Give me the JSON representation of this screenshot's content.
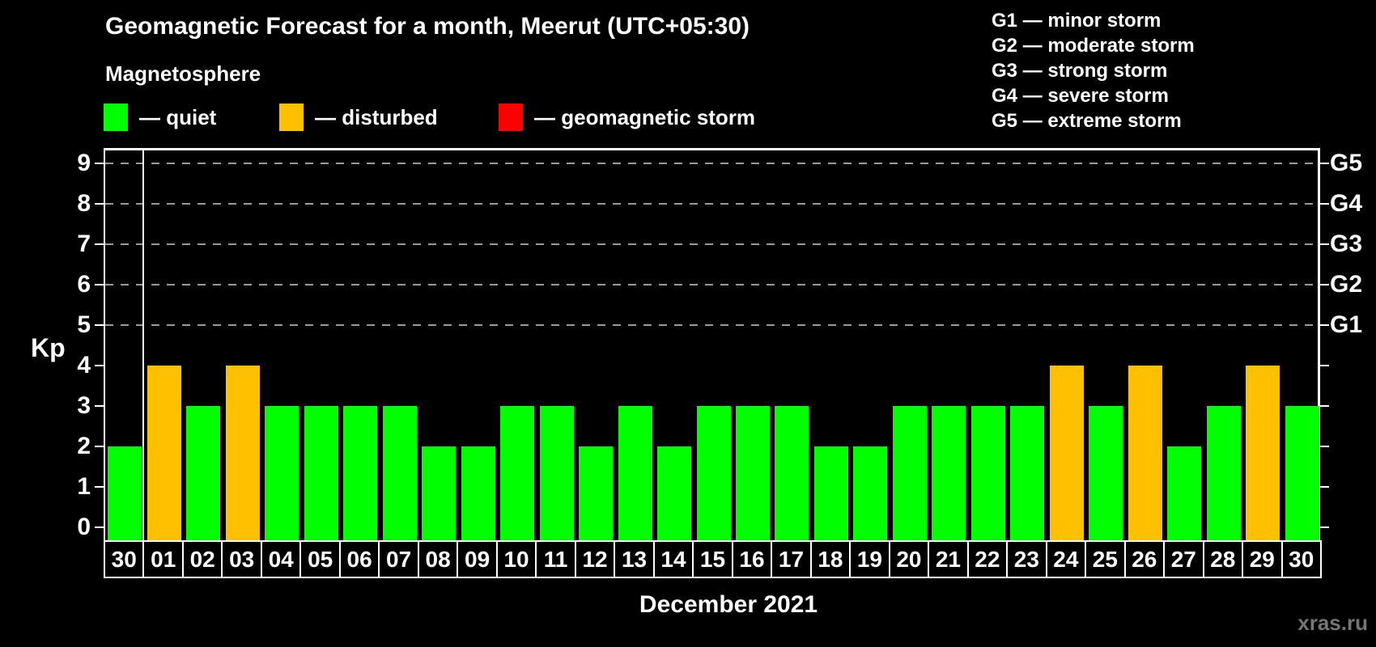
{
  "title": "Geomagnetic Forecast for a month, Meerut (UTC+05:30)",
  "subtitle": "Magnetosphere",
  "status_legend": {
    "items": [
      {
        "name": "quiet",
        "label": "— quiet",
        "color": "#00ff00"
      },
      {
        "name": "disturbed",
        "label": "— disturbed",
        "color": "#ffc000"
      },
      {
        "name": "storm",
        "label": "— geomagnetic storm",
        "color": "#ff0000"
      }
    ]
  },
  "storm_scale_legend": {
    "items": [
      {
        "code": "G1",
        "label": "G1 — minor storm"
      },
      {
        "code": "G2",
        "label": "G2 — moderate storm"
      },
      {
        "code": "G3",
        "label": "G3 — strong storm"
      },
      {
        "code": "G4",
        "label": "G4 — severe storm"
      },
      {
        "code": "G5",
        "label": "G5 — extreme storm"
      }
    ]
  },
  "watermark": "xras.ru",
  "chart_data": {
    "type": "bar",
    "title": "Geomagnetic Forecast for a month, Meerut (UTC+05:30)",
    "xlabel": "December 2021",
    "ylabel": "Kp",
    "ylim": [
      0,
      9.5
    ],
    "yticks": [
      0,
      1,
      2,
      3,
      4,
      5,
      6,
      7,
      8,
      9
    ],
    "grid": "dashed-horizontal",
    "gridlines_at_kp": [
      5,
      6,
      7,
      8,
      9
    ],
    "right_axis_labels": [
      {
        "kp": 5,
        "label": "G1"
      },
      {
        "kp": 6,
        "label": "G2"
      },
      {
        "kp": 7,
        "label": "G3"
      },
      {
        "kp": 8,
        "label": "G4"
      },
      {
        "kp": 9,
        "label": "G5"
      }
    ],
    "legend_position": "top-left",
    "month_separator_after_index": 0,
    "categories": [
      "30",
      "01",
      "02",
      "03",
      "04",
      "05",
      "06",
      "07",
      "08",
      "09",
      "10",
      "11",
      "12",
      "13",
      "14",
      "15",
      "16",
      "17",
      "18",
      "19",
      "20",
      "21",
      "22",
      "23",
      "24",
      "25",
      "26",
      "27",
      "28",
      "29",
      "30"
    ],
    "values": [
      2,
      4,
      3,
      4,
      3,
      3,
      3,
      3,
      2,
      2,
      3,
      3,
      2,
      3,
      2,
      3,
      3,
      3,
      2,
      2,
      3,
      3,
      3,
      3,
      4,
      3,
      4,
      2,
      3,
      4,
      3
    ],
    "states": [
      "quiet",
      "disturbed",
      "quiet",
      "disturbed",
      "quiet",
      "quiet",
      "quiet",
      "quiet",
      "quiet",
      "quiet",
      "quiet",
      "quiet",
      "quiet",
      "quiet",
      "quiet",
      "quiet",
      "quiet",
      "quiet",
      "quiet",
      "quiet",
      "quiet",
      "quiet",
      "quiet",
      "quiet",
      "disturbed",
      "quiet",
      "disturbed",
      "quiet",
      "quiet",
      "disturbed",
      "quiet"
    ],
    "state_colors": {
      "quiet": "#00ff00",
      "disturbed": "#ffc000",
      "storm": "#ff0000"
    }
  }
}
